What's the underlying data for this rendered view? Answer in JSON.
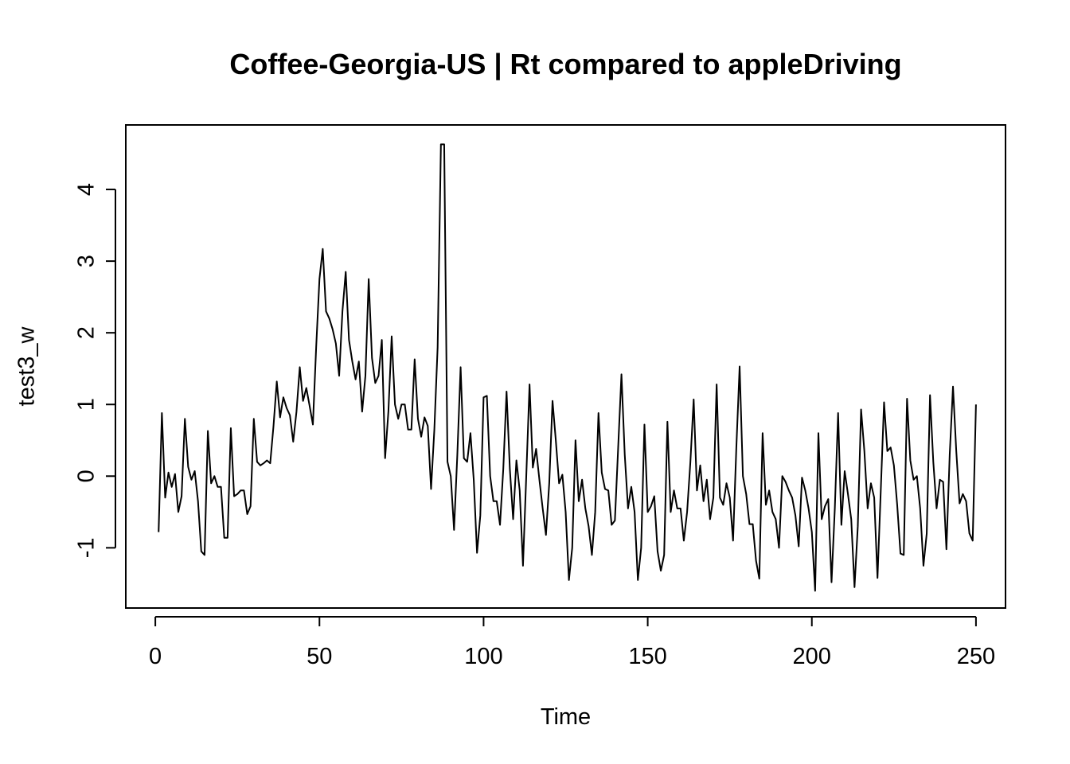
{
  "chart_data": {
    "type": "line",
    "title": "Coffee-Georgia-US | Rt compared to appleDriving",
    "xlabel": "Time",
    "ylabel": "test3_w",
    "xlim": [
      -9,
      259
    ],
    "ylim": [
      -1.84,
      4.9
    ],
    "x_ticks": [
      0,
      50,
      100,
      150,
      200,
      250
    ],
    "y_ticks": [
      -1,
      0,
      1,
      2,
      3,
      4
    ],
    "x_tick_labels": [
      "0",
      "50",
      "100",
      "150",
      "200",
      "250"
    ],
    "y_tick_labels": [
      "-1",
      "0",
      "1",
      "2",
      "3",
      "4"
    ],
    "grid": false,
    "legend": "none",
    "line_color": "#000000",
    "series": [
      {
        "x_start": 1,
        "x_step": 1,
        "values": [
          -0.78,
          0.88,
          -0.3,
          0.05,
          -0.15,
          0.03,
          -0.5,
          -0.28,
          0.8,
          0.13,
          -0.05,
          0.07,
          -0.35,
          -1.05,
          -1.1,
          0.63,
          -0.1,
          0.0,
          -0.15,
          -0.15,
          -0.86,
          -0.86,
          0.67,
          -0.28,
          -0.25,
          -0.2,
          -0.2,
          -0.53,
          -0.42,
          0.8,
          0.2,
          0.15,
          0.18,
          0.22,
          0.18,
          0.7,
          1.32,
          0.82,
          1.1,
          0.95,
          0.85,
          0.48,
          0.9,
          1.52,
          1.05,
          1.23,
          0.98,
          0.72,
          1.8,
          2.75,
          3.17,
          2.3,
          2.2,
          2.05,
          1.85,
          1.4,
          2.3,
          2.85,
          1.9,
          1.6,
          1.35,
          1.6,
          0.9,
          1.4,
          2.75,
          1.65,
          1.3,
          1.4,
          1.9,
          0.25,
          0.9,
          1.95,
          1.0,
          0.8,
          1.0,
          1.0,
          0.65,
          0.65,
          1.63,
          0.8,
          0.55,
          0.82,
          0.7,
          -0.18,
          0.65,
          1.8,
          4.63,
          4.63,
          0.2,
          0.0,
          -0.75,
          0.3,
          1.52,
          0.25,
          0.2,
          0.6,
          -0.05,
          -1.07,
          -0.55,
          1.1,
          1.12,
          0.0,
          -0.35,
          -0.35,
          -0.68,
          0.1,
          1.18,
          0.1,
          -0.6,
          0.22,
          -0.2,
          -1.25,
          0.0,
          1.28,
          0.12,
          0.38,
          -0.05,
          -0.45,
          -0.82,
          -0.1,
          1.05,
          0.5,
          -0.1,
          0.02,
          -0.5,
          -1.45,
          -1.0,
          0.5,
          -0.35,
          -0.05,
          -0.45,
          -0.7,
          -1.1,
          -0.5,
          0.88,
          0.05,
          -0.18,
          -0.2,
          -0.68,
          -0.62,
          0.4,
          1.42,
          0.3,
          -0.45,
          -0.15,
          -0.5,
          -1.45,
          -1.0,
          0.72,
          -0.5,
          -0.42,
          -0.28,
          -1.05,
          -1.32,
          -1.1,
          0.76,
          -0.5,
          -0.2,
          -0.45,
          -0.45,
          -0.9,
          -0.5,
          0.2,
          1.07,
          -0.2,
          0.15,
          -0.35,
          -0.05,
          -0.6,
          -0.3,
          1.28,
          -0.3,
          -0.4,
          -0.1,
          -0.3,
          -0.9,
          0.4,
          1.53,
          0.0,
          -0.25,
          -0.67,
          -0.67,
          -1.18,
          -1.43,
          0.6,
          -0.4,
          -0.2,
          -0.5,
          -0.6,
          -1.0,
          0.0,
          -0.08,
          -0.2,
          -0.3,
          -0.55,
          -0.98,
          -0.02,
          -0.2,
          -0.45,
          -0.78,
          -1.6,
          0.6,
          -0.6,
          -0.42,
          -0.32,
          -1.48,
          -0.45,
          0.88,
          -0.68,
          0.07,
          -0.25,
          -0.6,
          -1.55,
          -0.7,
          0.93,
          0.35,
          -0.45,
          -0.1,
          -0.3,
          -1.42,
          -0.2,
          1.03,
          0.35,
          0.4,
          0.15,
          -0.4,
          -1.08,
          -1.1,
          1.08,
          0.22,
          -0.05,
          0.0,
          -0.45,
          -1.25,
          -0.8,
          1.13,
          0.2,
          -0.45,
          -0.05,
          -0.08,
          -1.02,
          0.3,
          1.25,
          0.35,
          -0.38,
          -0.25,
          -0.35,
          -0.8,
          -0.9,
          1.0
        ]
      }
    ]
  }
}
